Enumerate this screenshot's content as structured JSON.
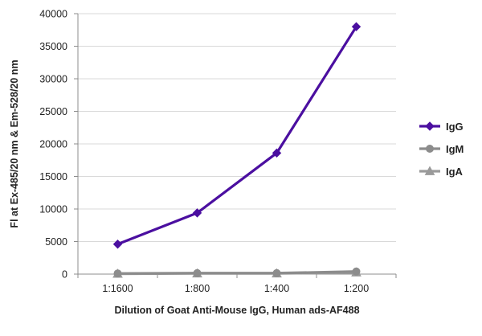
{
  "chart_data": {
    "type": "line",
    "title": "",
    "xlabel": "Dilution of Goat Anti-Mouse IgG, Human ads-AF488",
    "ylabel": "Fl at Ex-485/20 nm & Em-528/20 nm",
    "categories": [
      "1:1600",
      "1:800",
      "1:400",
      "1:200"
    ],
    "ylim": [
      0,
      40000
    ],
    "yticks": [
      "0",
      "5000",
      "10000",
      "15000",
      "20000",
      "25000",
      "30000",
      "35000",
      "40000"
    ],
    "ytick_values": [
      0,
      5000,
      10000,
      15000,
      20000,
      25000,
      30000,
      35000,
      40000
    ],
    "grid": "horizontal",
    "legend_position": "right",
    "series": [
      {
        "name": "IgG",
        "values": [
          4600,
          9400,
          18600,
          38000
        ],
        "color": "#4b0fa0",
        "marker": "diamond"
      },
      {
        "name": "IgM",
        "values": [
          100,
          150,
          150,
          400
        ],
        "color": "#8c8c8c",
        "marker": "circle"
      },
      {
        "name": "IgA",
        "values": [
          50,
          100,
          100,
          250
        ],
        "color": "#9a9a9a",
        "marker": "triangle"
      }
    ]
  }
}
